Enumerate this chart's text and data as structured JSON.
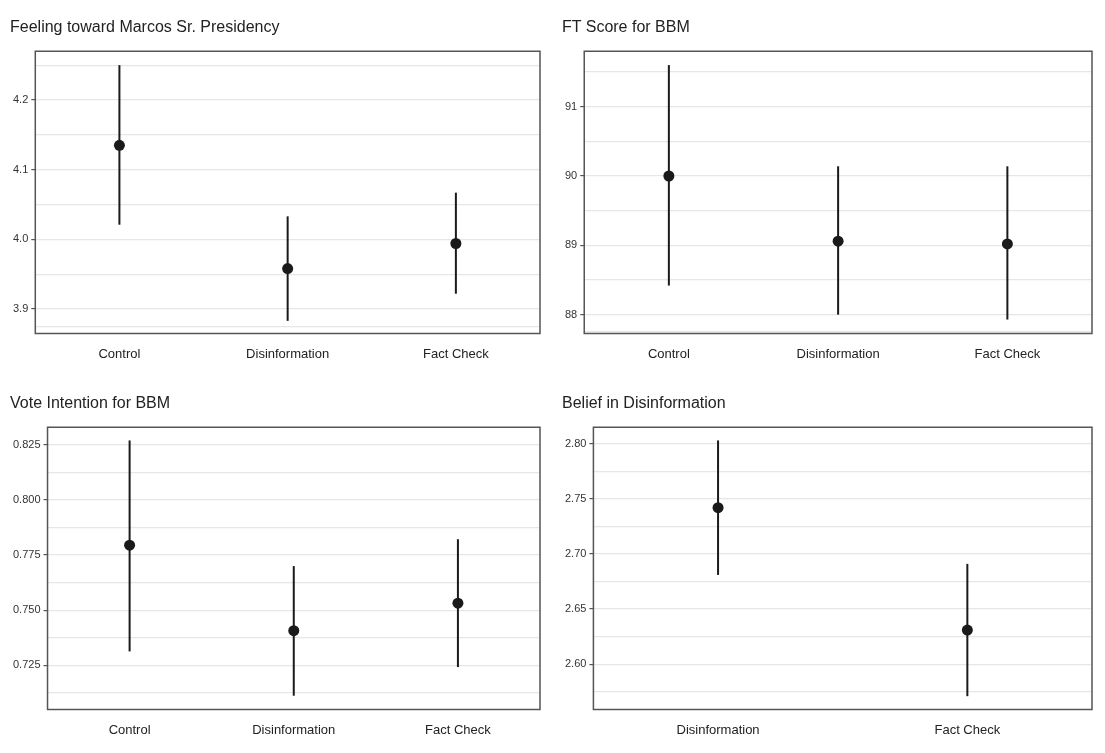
{
  "chart_data": [
    {
      "type": "scatter",
      "title": "Feeling toward Marcos Sr. Presidency",
      "categories": [
        "Control",
        "Disinformation",
        "Fact Check"
      ],
      "color": "#1a1a1a",
      "marker": "circle",
      "values": [
        4.135,
        3.958,
        3.994
      ],
      "errors": [
        [
          4.021,
          4.25
        ],
        [
          3.883,
          4.033
        ],
        [
          3.922,
          4.067
        ]
      ],
      "ylim": [
        3.865,
        4.27
      ],
      "yticks": [
        {
          "value": 3.875,
          "label": null
        },
        3.9,
        {
          "value": 3.95,
          "label": null
        },
        {
          "value": 4.0,
          "label": "4.0"
        },
        {
          "value": 4.05,
          "label": null
        },
        4.1,
        {
          "value": 4.15,
          "label": null
        },
        4.2,
        {
          "value": 4.25,
          "label": null
        }
      ],
      "grid": "y"
    },
    {
      "type": "scatter",
      "title": "FT Score for BBM",
      "categories": [
        "Control",
        "Disinformation",
        "Fact Check"
      ],
      "color": "#1a1a1a",
      "marker": "circle",
      "values": [
        90.0,
        89.06,
        89.02
      ],
      "errors": [
        [
          88.42,
          91.6
        ],
        [
          88.0,
          90.14
        ],
        [
          87.93,
          90.14
        ]
      ],
      "ylim": [
        87.73,
        91.8
      ],
      "yticks": [
        {
          "value": 87.75,
          "label": null
        },
        88,
        {
          "value": 88.5,
          "label": null
        },
        89,
        {
          "value": 89.5,
          "label": null
        },
        90,
        {
          "value": 90.5,
          "label": null
        },
        91,
        {
          "value": 91.5,
          "label": null
        }
      ],
      "grid": "y"
    },
    {
      "type": "scatter",
      "title": "Vote Intention for BBM",
      "categories": [
        "Control",
        "Disinformation",
        "Fact Check"
      ],
      "color": "#1a1a1a",
      "marker": "circle",
      "values": [
        0.7795,
        0.7407,
        0.7532
      ],
      "errors": [
        [
          0.7313,
          0.827
        ],
        [
          0.7112,
          0.77
        ],
        [
          0.7242,
          0.7822
        ]
      ],
      "ylim": [
        0.705,
        0.833
      ],
      "yticks": [
        {
          "value": 0.7125,
          "label": null
        },
        {
          "value": 0.725,
          "label": "0.725"
        },
        {
          "value": 0.7375,
          "label": null
        },
        {
          "value": 0.75,
          "label": "0.750"
        },
        {
          "value": 0.7625,
          "label": null
        },
        {
          "value": 0.775,
          "label": "0.775"
        },
        {
          "value": 0.7875,
          "label": null
        },
        {
          "value": 0.8,
          "label": "0.800"
        },
        {
          "value": 0.8125,
          "label": null
        },
        {
          "value": 0.825,
          "label": "0.825"
        }
      ],
      "grid": "y"
    },
    {
      "type": "scatter",
      "title": "Belief in Disinformation",
      "categories": [
        "Disinformation",
        "Fact Check"
      ],
      "color": "#1a1a1a",
      "marker": "circle",
      "values": [
        2.742,
        2.631
      ],
      "errors": [
        [
          2.681,
          2.803
        ],
        [
          2.571,
          2.691
        ]
      ],
      "ylim": [
        2.559,
        2.815
      ],
      "yticks": [
        {
          "value": 2.575,
          "label": null
        },
        {
          "value": 2.6,
          "label": "2.60"
        },
        {
          "value": 2.625,
          "label": null
        },
        {
          "value": 2.65,
          "label": "2.65"
        },
        {
          "value": 2.675,
          "label": null
        },
        {
          "value": 2.7,
          "label": "2.70"
        },
        {
          "value": 2.725,
          "label": null
        },
        {
          "value": 2.75,
          "label": "2.75"
        },
        {
          "value": 2.775,
          "label": null
        },
        {
          "value": 2.8,
          "label": "2.80"
        }
      ],
      "grid": "y"
    }
  ]
}
